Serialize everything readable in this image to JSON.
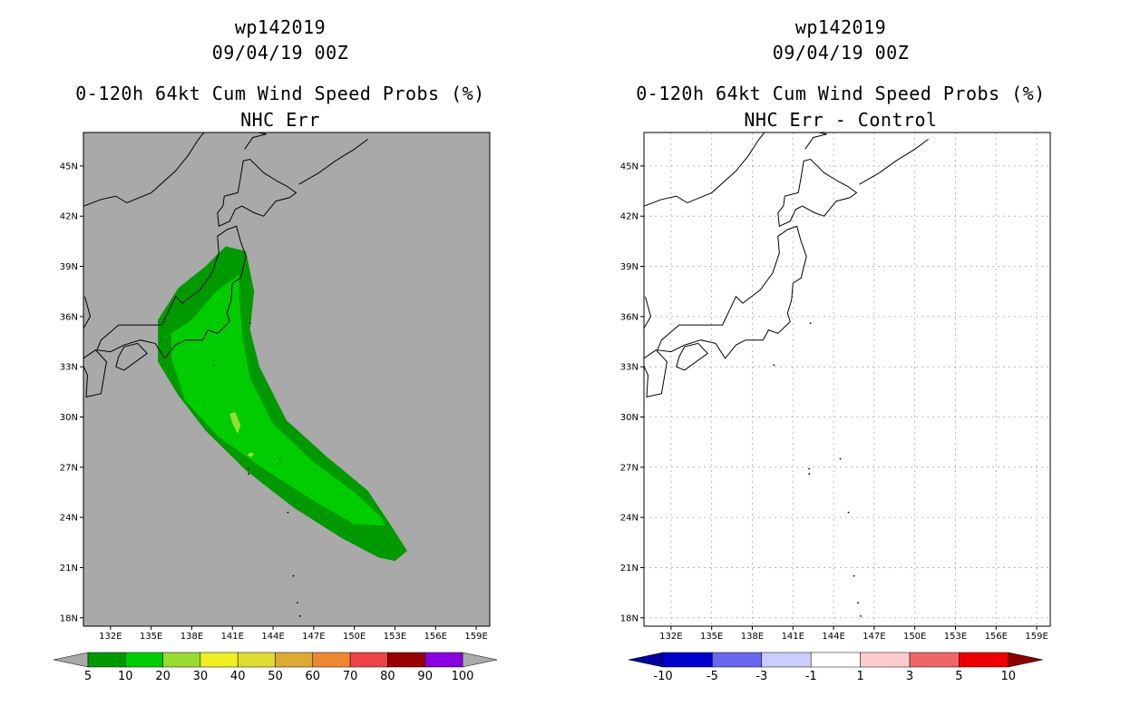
{
  "panels": [
    {
      "id": "left",
      "storm_id": "wp142019",
      "datetime": "09/04/19 00Z",
      "title": "0-120h 64kt Cum Wind Speed Probs (%)",
      "subtitle": "NHC Err",
      "background_color": "#a9a9a9",
      "grid": false,
      "colorbar": {
        "labels": [
          "5",
          "10",
          "20",
          "30",
          "40",
          "50",
          "60",
          "70",
          "80",
          "90",
          "100"
        ],
        "colors": [
          "#009900",
          "#00cc00",
          "#99dd33",
          "#eeee22",
          "#dddd33",
          "#ddaa33",
          "#ee8833",
          "#ee4444",
          "#990000",
          "#8800dd"
        ],
        "under_color": "#a9a9a9",
        "over_color": "#a9a9a9"
      }
    },
    {
      "id": "right",
      "storm_id": "wp142019",
      "datetime": "09/04/19 00Z",
      "title": "0-120h 64kt Cum Wind Speed Probs (%)",
      "subtitle": "NHC Err - Control",
      "background_color": "#ffffff",
      "grid": true,
      "colorbar": {
        "labels": [
          "-10",
          "-5",
          "-3",
          "-1",
          "1",
          "3",
          "5",
          "10"
        ],
        "colors": [
          "#0000cc",
          "#6666ee",
          "#ccccff",
          "#ffffff",
          "#ffcccc",
          "#ee6666",
          "#ee0000"
        ],
        "under_color": "#000099",
        "over_color": "#880000"
      }
    }
  ],
  "chart_data": {
    "type": "heatmap",
    "x_axis": {
      "label": "",
      "range": [
        130,
        160
      ],
      "ticks": [
        132,
        135,
        138,
        141,
        144,
        147,
        150,
        153,
        156,
        159
      ],
      "tick_labels": [
        "132E",
        "135E",
        "138E",
        "141E",
        "144E",
        "147E",
        "150E",
        "153E",
        "156E",
        "159E"
      ]
    },
    "y_axis": {
      "label": "",
      "range": [
        17.5,
        47
      ],
      "ticks": [
        18,
        21,
        24,
        27,
        30,
        33,
        36,
        39,
        42,
        45
      ],
      "tick_labels": [
        "18N",
        "21N",
        "24N",
        "27N",
        "30N",
        "33N",
        "36N",
        "39N",
        "42N",
        "45N"
      ]
    },
    "probability_contours": [
      {
        "level": "5-10",
        "color": "#009900",
        "lonlat": [
          [
            140.5,
            40.2
          ],
          [
            142.0,
            39.9
          ],
          [
            142.6,
            37.5
          ],
          [
            142.3,
            35.2
          ],
          [
            143.0,
            33.0
          ],
          [
            145.0,
            29.8
          ],
          [
            148.0,
            27.6
          ],
          [
            151.0,
            25.6
          ],
          [
            152.8,
            23.4
          ],
          [
            153.9,
            22.0
          ],
          [
            153.0,
            21.4
          ],
          [
            151.8,
            21.6
          ],
          [
            149.0,
            22.8
          ],
          [
            145.5,
            24.6
          ],
          [
            142.0,
            26.8
          ],
          [
            139.0,
            29.2
          ],
          [
            137.0,
            31.3
          ],
          [
            135.5,
            33.3
          ],
          [
            135.5,
            35.8
          ],
          [
            137.0,
            37.7
          ],
          [
            139.0,
            39.0
          ]
        ]
      },
      {
        "level": "10-20",
        "color": "#00cc00",
        "lonlat": [
          [
            141.5,
            38.5
          ],
          [
            141.5,
            37.0
          ],
          [
            141.8,
            34.5
          ],
          [
            142.3,
            32.3
          ],
          [
            144.0,
            29.6
          ],
          [
            147.0,
            27.3
          ],
          [
            150.0,
            25.5
          ],
          [
            152.0,
            24.0
          ],
          [
            152.3,
            23.5
          ],
          [
            150.0,
            23.6
          ],
          [
            147.0,
            25.0
          ],
          [
            143.5,
            26.8
          ],
          [
            140.0,
            28.8
          ],
          [
            137.5,
            31.0
          ],
          [
            136.5,
            33.5
          ],
          [
            136.5,
            35.0
          ],
          [
            138.0,
            35.8
          ],
          [
            139.8,
            37.5
          ]
        ]
      },
      {
        "level": "20-30",
        "color": "#99dd33",
        "lonlat": [
          [
            141.2,
            30.3
          ],
          [
            141.6,
            29.5
          ],
          [
            141.4,
            29.0
          ],
          [
            141.0,
            29.6
          ],
          [
            140.8,
            30.2
          ]
        ]
      },
      {
        "level": "20-30",
        "color": "#99dd33",
        "lonlat": [
          [
            142.3,
            27.9
          ],
          [
            142.6,
            27.8
          ],
          [
            142.4,
            27.6
          ],
          [
            142.1,
            27.7
          ]
        ]
      }
    ],
    "difference_field": "none visible (all within -1 to 1)"
  }
}
